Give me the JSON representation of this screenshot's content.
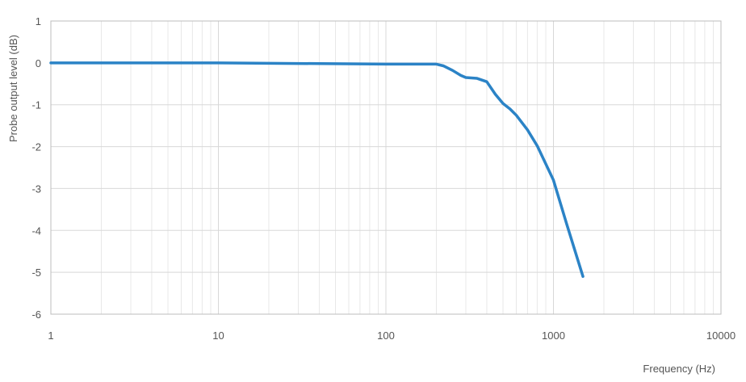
{
  "chart_data": {
    "type": "line",
    "title": "",
    "xlabel": "Frequency (Hz)",
    "ylabel": "Probe output level (dB)",
    "x_scale": "log",
    "xlim": [
      1,
      10000
    ],
    "ylim": [
      -6,
      1
    ],
    "x_ticks": [
      1,
      10,
      100,
      1000,
      10000
    ],
    "x_tick_labels": [
      "1",
      "10",
      "100",
      "1000",
      "10000"
    ],
    "y_ticks": [
      1,
      0,
      -1,
      -2,
      -3,
      -4,
      -5,
      -6
    ],
    "y_tick_labels": [
      "1",
      "0",
      "-1",
      "-2",
      "-3",
      "-4",
      "-5",
      "-6"
    ],
    "grid": true,
    "series": [
      {
        "color": "#2b83c6",
        "x": [
          1,
          10,
          100,
          200,
          220,
          250,
          280,
          300,
          350,
          400,
          450,
          500,
          550,
          600,
          700,
          800,
          1000,
          1200,
          1500
        ],
        "y": [
          0,
          0,
          -0.03,
          -0.03,
          -0.07,
          -0.18,
          -0.3,
          -0.35,
          -0.37,
          -0.45,
          -0.75,
          -0.97,
          -1.1,
          -1.25,
          -1.6,
          -1.98,
          -2.8,
          -3.85,
          -5.1
        ]
      }
    ]
  }
}
